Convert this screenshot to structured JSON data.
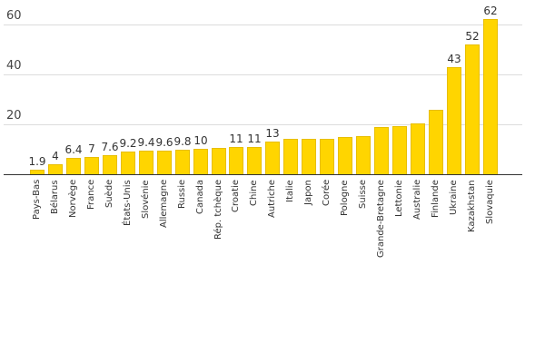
{
  "chart_data": {
    "type": "bar",
    "title": "",
    "xlabel": "",
    "ylabel": "",
    "ylim": [
      0,
      65
    ],
    "yticks": [
      20,
      40,
      60
    ],
    "grid": true,
    "legend": null,
    "bar_color": "#FFD500",
    "categories": [
      "Pays-Bas",
      "Bélarus",
      "Norvège",
      "France",
      "Suède",
      "États-Unis",
      "Slovénie",
      "Allemagne",
      "Russie",
      "Canada",
      "Rép. tchèque",
      "Croatie",
      "Chine",
      "Autriche",
      "Italie",
      "Japon",
      "Corée",
      "Pologne",
      "Suisse",
      "Grande-Bretagne",
      "Lettonie",
      "Australie",
      "Finlande",
      "Ukraine",
      "Kazakhstan",
      "Slovaquie"
    ],
    "values": [
      1.9,
      4,
      6.4,
      7,
      7.6,
      9.2,
      9.4,
      9.6,
      9.8,
      10,
      10.6,
      11,
      11,
      13,
      14.2,
      14.1,
      14.1,
      14.9,
      15.3,
      18.9,
      19.3,
      20.4,
      25.8,
      43,
      52,
      62
    ],
    "data_labels": [
      "1.9",
      "4",
      "6.4",
      "7",
      "7.6",
      "9.2",
      "9.4",
      "9.6",
      "9.8",
      "10",
      "",
      "11",
      "11",
      "13",
      "",
      "",
      "",
      "",
      "",
      "",
      "",
      "",
      "",
      "43",
      "52",
      "62"
    ]
  }
}
